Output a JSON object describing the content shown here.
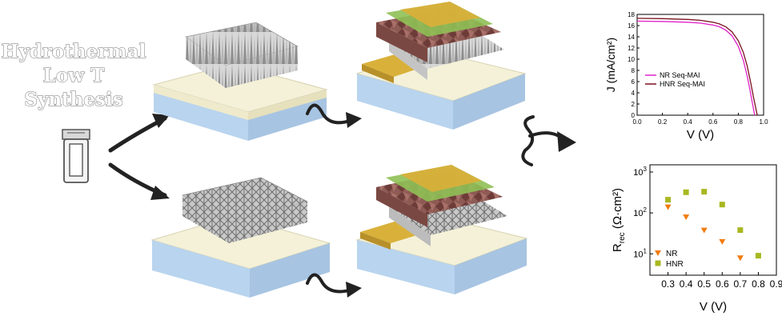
{
  "title_lines": [
    "Hydrothermal",
    "Low T",
    "Synthesis"
  ],
  "chart_data": [
    {
      "type": "line",
      "xlabel": "V (V)",
      "ylabel": "J (mA/cm²)",
      "xlim": [
        0.0,
        1.0
      ],
      "ylim": [
        0,
        18
      ],
      "xticks": [
        "0.0",
        "0.2",
        "0.4",
        "0.6",
        "0.8",
        "1.0"
      ],
      "yticks": [
        "0",
        "2",
        "4",
        "6",
        "8",
        "10",
        "12",
        "14",
        "16",
        "18"
      ],
      "legend_position": "middle-left",
      "series": [
        {
          "name": "NR Seq-MAI",
          "color": "#e020c8",
          "x": [
            0.0,
            0.2,
            0.4,
            0.5,
            0.6,
            0.65,
            0.7,
            0.75,
            0.8,
            0.84,
            0.87,
            0.89,
            0.91,
            0.93
          ],
          "y": [
            16.8,
            16.75,
            16.6,
            16.45,
            16.1,
            15.8,
            15.2,
            14.2,
            12.3,
            9.8,
            7.0,
            4.8,
            2.3,
            0.0
          ]
        },
        {
          "name": "HNR Seq-MAI",
          "color": "#7a1020",
          "x": [
            0.0,
            0.2,
            0.4,
            0.5,
            0.6,
            0.65,
            0.7,
            0.75,
            0.8,
            0.84,
            0.87,
            0.9,
            0.92,
            0.95
          ],
          "y": [
            17.3,
            17.25,
            17.1,
            16.95,
            16.6,
            16.3,
            15.8,
            14.9,
            13.3,
            11.2,
            8.8,
            5.6,
            3.2,
            0.0
          ]
        }
      ]
    },
    {
      "type": "scatter",
      "xlabel": "V (V)",
      "ylabel_main": "R",
      "ylabel_sub": "rec",
      "ylabel_rest": " (Ω·cm²)",
      "xlim": [
        0.2,
        0.9
      ],
      "ylog": true,
      "ylim": [
        3,
        1500
      ],
      "xticks": [
        "0.3",
        "0.4",
        "0.5",
        "0.6",
        "0.7",
        "0.8",
        "0.9"
      ],
      "yticks": [
        {
          "value": 10,
          "base": "10",
          "exp": "1"
        },
        {
          "value": 100,
          "base": "10",
          "exp": "2"
        },
        {
          "value": 1000,
          "base": "10",
          "exp": "3"
        }
      ],
      "legend_position": "bottom-left",
      "series": [
        {
          "name": "NR",
          "marker": "triangle-down",
          "color": "#f07c10",
          "x": [
            0.3,
            0.4,
            0.5,
            0.6,
            0.7
          ],
          "y": [
            140,
            80,
            38,
            20,
            8
          ]
        },
        {
          "name": "HNR",
          "marker": "square",
          "color": "#a8b820",
          "x": [
            0.3,
            0.4,
            0.5,
            0.6,
            0.7,
            0.8
          ],
          "y": [
            210,
            320,
            330,
            160,
            38,
            9
          ]
        }
      ]
    }
  ]
}
